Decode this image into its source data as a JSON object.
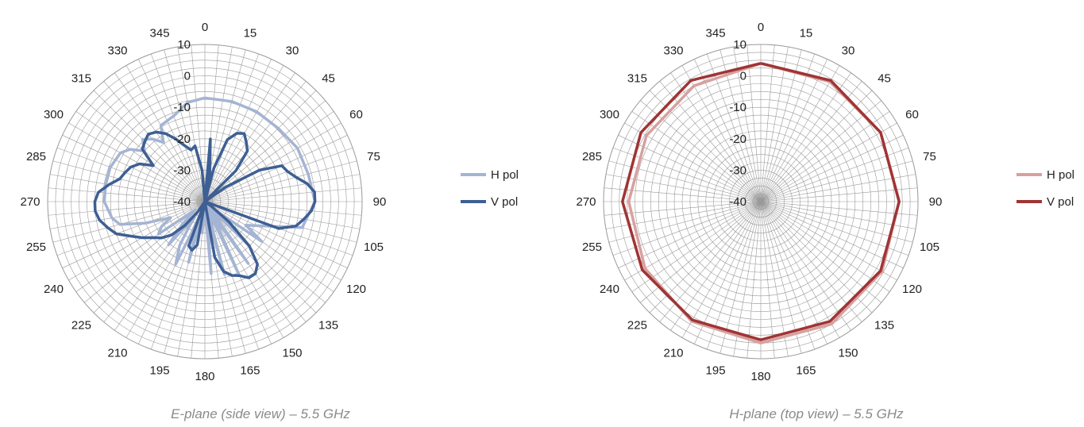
{
  "chart_data": [
    {
      "type": "polar-line",
      "title": "E-plane (side view) – 5.5 GHz",
      "theta_ticks": [
        0,
        15,
        30,
        45,
        60,
        75,
        90,
        105,
        120,
        135,
        150,
        165,
        180,
        195,
        210,
        225,
        240,
        255,
        270,
        285,
        300,
        315,
        330,
        345
      ],
      "r_ticks": [
        10,
        0,
        -10,
        -20,
        -30,
        -40
      ],
      "r_range": [
        -40,
        10
      ],
      "grid": true,
      "legend_position": "right",
      "series": [
        {
          "name": "H pol",
          "color": "#a4b4d4",
          "theta": [
            0,
            15,
            30,
            45,
            60,
            75,
            90,
            105,
            120,
            125,
            130,
            135,
            140,
            145,
            150,
            155,
            160,
            165,
            170,
            175,
            180,
            185,
            190,
            195,
            200,
            205,
            210,
            215,
            220,
            225,
            230,
            235,
            240,
            245,
            250,
            255,
            260,
            270,
            280,
            290,
            300,
            305,
            310,
            315,
            320,
            325,
            330,
            340,
            350,
            360
          ],
          "r": [
            -7,
            -7,
            -7,
            -7,
            -6,
            -6,
            -5,
            -8,
            -25,
            -18,
            -36,
            -20,
            -38,
            -16,
            -35,
            -14,
            -38,
            -16,
            -36,
            -17,
            -38,
            -30,
            -36,
            -20,
            -34,
            -18,
            -24,
            -34,
            -22,
            -30,
            -36,
            -22,
            -24,
            -28,
            -20,
            -12,
            -10,
            -8,
            -8,
            -8,
            -9,
            -11,
            -15,
            -12,
            -14,
            -17,
            -12,
            -11,
            -8,
            -7
          ]
        },
        {
          "name": "V pol",
          "color": "#3d5f94",
          "theta": [
            0,
            5,
            10,
            12,
            15,
            20,
            25,
            30,
            35,
            40,
            45,
            50,
            55,
            60,
            65,
            70,
            75,
            80,
            85,
            90,
            95,
            100,
            105,
            110,
            115,
            120,
            125,
            130,
            135,
            140,
            145,
            150,
            155,
            160,
            165,
            170,
            175,
            180,
            185,
            190,
            195,
            200,
            205,
            210,
            215,
            220,
            225,
            230,
            235,
            240,
            245,
            250,
            255,
            260,
            265,
            270,
            275,
            280,
            285,
            290,
            295,
            300,
            305,
            310,
            315,
            320,
            325,
            330,
            335,
            340,
            345,
            350,
            355,
            360
          ],
          "r": [
            -40,
            -20,
            -31,
            -40,
            -29,
            -19,
            -16,
            -15,
            -17,
            -19,
            -26,
            -40,
            -32,
            -20,
            -13,
            -12,
            -10,
            -7,
            -5,
            -5,
            -6,
            -8,
            -10,
            -15,
            -40,
            -40,
            -38,
            -30,
            -20,
            -14,
            -12,
            -12,
            -14,
            -15,
            -17,
            -22,
            -40,
            -40,
            -40,
            -26,
            -24,
            -25,
            -40,
            -40,
            -36,
            -30,
            -25,
            -22,
            -20,
            -17,
            -14,
            -10,
            -8,
            -6,
            -5,
            -5,
            -6,
            -9,
            -12,
            -13,
            -14,
            -16,
            -20,
            -14,
            -13,
            -12,
            -13,
            -15,
            -18,
            -21,
            -23,
            -22,
            -30,
            -40
          ]
        }
      ]
    },
    {
      "type": "polar-line",
      "title": "H-plane (top view) – 5.5 GHz",
      "theta_ticks": [
        0,
        15,
        30,
        45,
        60,
        75,
        90,
        105,
        120,
        135,
        150,
        165,
        180,
        195,
        210,
        225,
        240,
        255,
        270,
        285,
        300,
        315,
        330,
        345
      ],
      "r_ticks": [
        10,
        0,
        -10,
        -20,
        -30,
        -40
      ],
      "r_range": [
        -40,
        10
      ],
      "grid": true,
      "legend_position": "right",
      "series": [
        {
          "name": "H pol",
          "color": "#d8a0a0",
          "theta": [
            0,
            30,
            60,
            90,
            120,
            150,
            180,
            210,
            240,
            270,
            300,
            330,
            360
          ],
          "r": [
            4,
            4,
            4,
            4,
            4.5,
            5,
            5,
            4,
            2.5,
            2,
            2,
            2.5,
            4
          ]
        },
        {
          "name": "V pol",
          "color": "#a03434",
          "theta": [
            0,
            30,
            60,
            90,
            120,
            150,
            180,
            210,
            240,
            270,
            300,
            330,
            360
          ],
          "r": [
            4,
            4.5,
            4,
            4,
            4,
            4,
            4,
            3.5,
            3.5,
            4,
            4,
            4.5,
            4
          ]
        }
      ]
    }
  ]
}
